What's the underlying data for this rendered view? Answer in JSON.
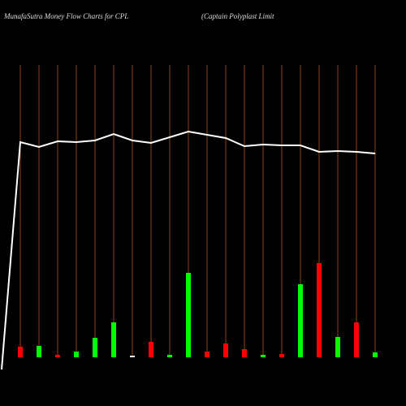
{
  "chart_data": {
    "type": "bar",
    "title": "MunafaSutra  Money Flow  Charts for CPL",
    "subtitle": "(Captain  Polyplast Limit",
    "categories": [
      null,
      null,
      null,
      null,
      null,
      null,
      null,
      null,
      null,
      null,
      null,
      null,
      null,
      null,
      null,
      null,
      null,
      null,
      null,
      null,
      null
    ],
    "values": [
      null,
      13,
      14,
      3,
      7,
      24,
      43,
      2,
      19,
      3,
      104,
      7,
      17,
      10,
      3,
      4,
      90,
      116,
      25,
      43,
      6
    ],
    "colors": [
      null,
      "#ff0000",
      "#00ff00",
      "#ff0000",
      "#00ff00",
      "#00ff00",
      "#00ff00",
      "#ffffff",
      "#ff0000",
      "#00ff00",
      "#00ff00",
      "#ff0000",
      "#ff0000",
      "#ff0000",
      "#00ff00",
      "#ff0000",
      "#00ff00",
      "#ff0000",
      "#00ff00",
      "#ff0000",
      "#00ff00"
    ],
    "line": {
      "color": "#ffffff",
      "values": [
        45,
        325,
        319,
        326,
        325,
        327,
        335,
        327,
        324,
        331,
        338,
        334,
        330,
        320,
        322,
        321,
        321,
        313,
        314,
        313,
        311
      ]
    },
    "ylim": [
      0,
      500
    ],
    "grid_color": "#8b4513"
  }
}
